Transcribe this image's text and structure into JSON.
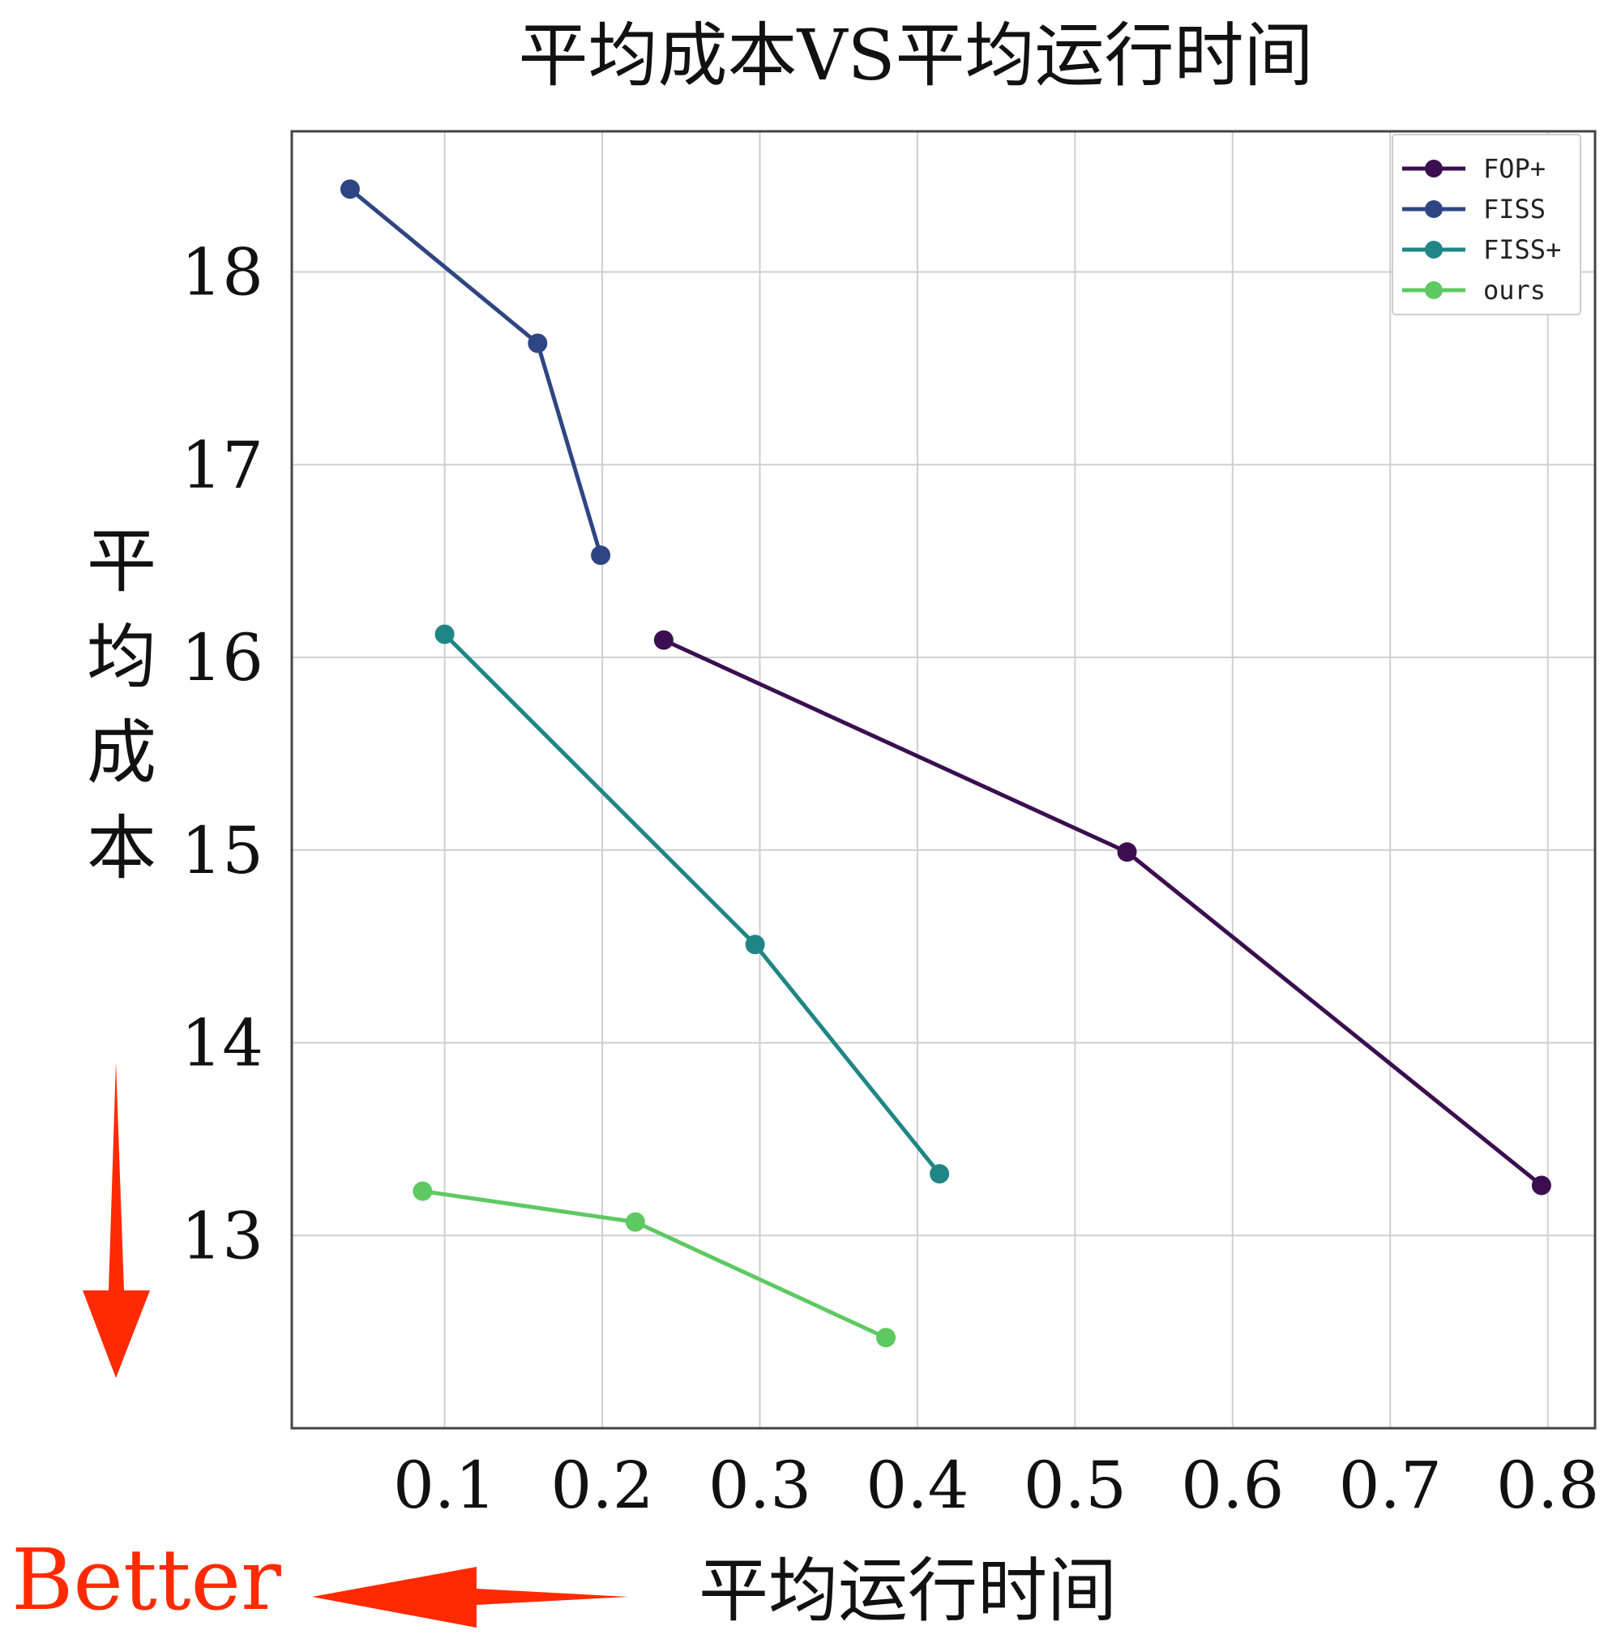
{
  "chart_data": {
    "type": "line",
    "title": "平均成本VS平均运行时间",
    "xlabel": "平均运行时间",
    "ylabel": "平均成本",
    "xlim": [
      0.003,
      0.83
    ],
    "ylim": [
      12.0,
      18.73
    ],
    "xticks": [
      0.1,
      0.2,
      0.3,
      0.4,
      0.5,
      0.6,
      0.7,
      0.8
    ],
    "xtick_labels": [
      "0.1",
      "0.2",
      "0.3",
      "0.4",
      "0.5",
      "0.6",
      "0.7",
      "0.8"
    ],
    "yticks": [
      13,
      14,
      15,
      16,
      17,
      18
    ],
    "ytick_labels": [
      "13",
      "14",
      "15",
      "16",
      "17",
      "18"
    ],
    "grid": true,
    "legend_position": "top-right",
    "series": [
      {
        "name": "FOP+",
        "color": "#3b0f4f",
        "x": [
          0.239,
          0.533,
          0.796
        ],
        "y": [
          16.09,
          14.99,
          13.26
        ]
      },
      {
        "name": "FISS",
        "color": "#2f4583",
        "x": [
          0.04,
          0.159,
          0.199
        ],
        "y": [
          18.43,
          17.63,
          16.53
        ]
      },
      {
        "name": "FISS+",
        "color": "#1f8685",
        "x": [
          0.1,
          0.297,
          0.414
        ],
        "y": [
          16.12,
          14.51,
          13.32
        ]
      },
      {
        "name": "ours",
        "color": "#5ec962",
        "x": [
          0.086,
          0.221,
          0.38
        ],
        "y": [
          13.23,
          13.07,
          12.47
        ]
      }
    ],
    "annotations": {
      "better_label": "Better",
      "better_color": "#ff2a00"
    }
  }
}
